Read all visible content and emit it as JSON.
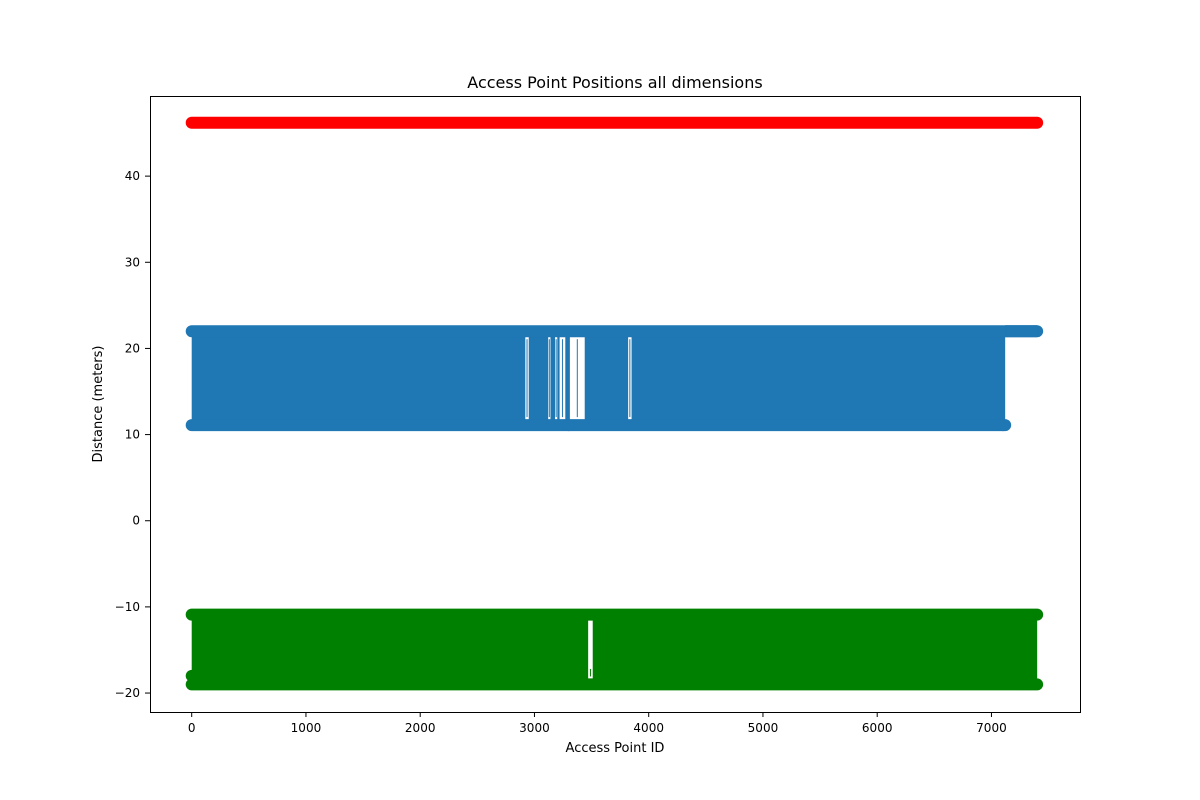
{
  "chart_data": {
    "type": "line",
    "title": "Access Point Positions all dimensions",
    "xlabel": "Access Point ID",
    "ylabel": "Distance (meters)",
    "xlim": [
      -365,
      7775
    ],
    "ylim": [
      -22.2,
      49.3
    ],
    "xticks": [
      0,
      1000,
      2000,
      3000,
      4000,
      5000,
      6000,
      7000
    ],
    "yticks": [
      -20,
      -10,
      0,
      10,
      20,
      30,
      40
    ],
    "grid": false,
    "legend": "none",
    "markers": "filled circles joined by lines",
    "x_extent": [
      0,
      7400
    ],
    "series": [
      {
        "color": "#ff0000",
        "values_constant": 46.2,
        "x_range": [
          0,
          7400
        ]
      },
      {
        "color": "#1f77b4",
        "band": [
          11.1,
          22.0
        ],
        "x_range": [
          0,
          7400
        ],
        "note_points": [
          {
            "x": 0,
            "y": 22.0
          },
          {
            "x": 7100,
            "y": 11.1
          },
          {
            "x": 7400,
            "y": 22.0
          },
          {
            "x": 3300,
            "y": 11.1
          }
        ],
        "gaps": [
          [
            2920,
            2950
          ],
          [
            3120,
            3140
          ],
          [
            3180,
            3200
          ],
          [
            3220,
            3270
          ],
          [
            3310,
            3440
          ],
          [
            3820,
            3850
          ]
        ],
        "solid_until": 7120
      },
      {
        "color": "#008000",
        "band": [
          -19.0,
          -10.9
        ],
        "x_range": [
          0,
          7400
        ],
        "gaps": [
          [
            3470,
            3510
          ]
        ],
        "extra_points": [
          {
            "x": 0,
            "y": -18.0
          }
        ]
      }
    ]
  }
}
